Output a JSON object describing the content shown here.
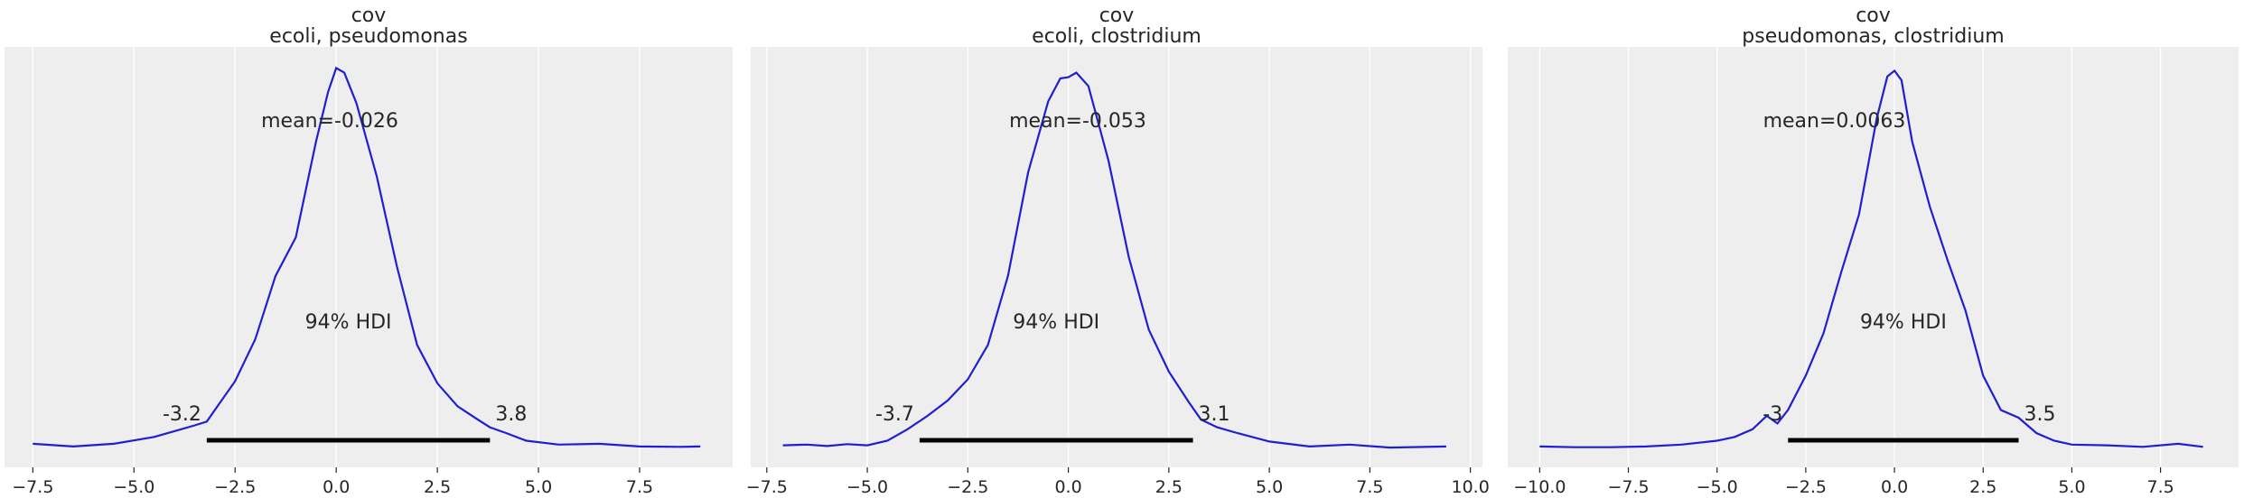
{
  "chart_data": [
    {
      "type": "line",
      "title": "cov",
      "subtitle": "ecoli, pseudomonas",
      "xlim": [
        -8.2,
        9.8
      ],
      "x_ticks": [
        -7.5,
        -5.0,
        -2.5,
        0.0,
        2.5,
        5.0,
        7.5
      ],
      "x_tick_labels": [
        "−7.5",
        "−5.0",
        "−2.5",
        "0.0",
        "2.5",
        "5.0",
        "7.5"
      ],
      "grid": true,
      "mean_label": "mean=-0.026",
      "hdi_label": "94% HDI",
      "hdi": [
        -3.2,
        3.8
      ],
      "hdi_low_label": "-3.2",
      "hdi_high_label": "3.8",
      "line_color": "#1f1fd1",
      "density": {
        "x": [
          -7.5,
          -6.5,
          -5.5,
          -4.5,
          -4.0,
          -3.5,
          -3.2,
          -3.0,
          -2.5,
          -2.0,
          -1.5,
          -1.0,
          -0.5,
          -0.2,
          0.0,
          0.2,
          0.5,
          1.0,
          1.5,
          2.0,
          2.5,
          3.0,
          3.5,
          3.8,
          4.2,
          4.7,
          5.5,
          6.5,
          7.5,
          8.5,
          9.0
        ],
        "y": [
          0.012,
          0.005,
          0.012,
          0.03,
          0.045,
          0.06,
          0.07,
          0.1,
          0.175,
          0.285,
          0.45,
          0.55,
          0.8,
          0.93,
          0.992,
          0.98,
          0.9,
          0.71,
          0.475,
          0.27,
          0.17,
          0.11,
          0.075,
          0.055,
          0.04,
          0.02,
          0.01,
          0.012,
          0.005,
          0.004,
          0.005
        ]
      }
    },
    {
      "type": "line",
      "title": "cov",
      "subtitle": "ecoli, clostridium",
      "xlim": [
        -7.9,
        10.3
      ],
      "x_ticks": [
        -7.5,
        -5.0,
        -2.5,
        0.0,
        2.5,
        5.0,
        7.5,
        10.0
      ],
      "x_tick_labels": [
        "−7.5",
        "−5.0",
        "−2.5",
        "0.0",
        "2.5",
        "5.0",
        "7.5",
        "10.0"
      ],
      "grid": true,
      "mean_label": "mean=-0.053",
      "hdi_label": "94% HDI",
      "hdi": [
        -3.7,
        3.1
      ],
      "hdi_low_label": "-3.7",
      "hdi_high_label": "3.1",
      "line_color": "#1f1fd1",
      "density": {
        "x": [
          -7.1,
          -6.5,
          -6.0,
          -5.5,
          -5.0,
          -4.5,
          -4.0,
          -3.5,
          -3.0,
          -2.5,
          -2.0,
          -1.5,
          -1.0,
          -0.5,
          -0.2,
          0.0,
          0.2,
          0.5,
          1.0,
          1.5,
          2.0,
          2.5,
          3.0,
          3.3,
          3.7,
          4.2,
          5.0,
          6.0,
          7.0,
          8.0,
          9.4
        ],
        "y": [
          0.008,
          0.01,
          0.006,
          0.011,
          0.008,
          0.02,
          0.05,
          0.085,
          0.125,
          0.18,
          0.27,
          0.45,
          0.72,
          0.905,
          0.965,
          0.968,
          0.98,
          0.945,
          0.75,
          0.5,
          0.31,
          0.2,
          0.12,
          0.075,
          0.055,
          0.04,
          0.018,
          0.005,
          0.01,
          0.002,
          0.005
        ]
      }
    },
    {
      "type": "line",
      "title": "cov",
      "subtitle": "pseudomonas, clostridium",
      "xlim": [
        -10.9,
        9.7
      ],
      "x_ticks": [
        -10.0,
        -7.5,
        -5.0,
        -2.5,
        0.0,
        2.5,
        5.0,
        7.5
      ],
      "x_tick_labels": [
        "−10.0",
        "−7.5",
        "−5.0",
        "−2.5",
        "0.0",
        "2.5",
        "5.0",
        "7.5"
      ],
      "grid": true,
      "mean_label": "mean=0.0063",
      "hdi_label": "94% HDI",
      "hdi": [
        -3.0,
        3.5
      ],
      "hdi_low_label": "-3",
      "hdi_high_label": "3.5",
      "line_color": "#1f1fd1",
      "density": {
        "x": [
          -10.0,
          -9.0,
          -8.0,
          -7.0,
          -6.0,
          -5.0,
          -4.5,
          -4.0,
          -3.6,
          -3.3,
          -3.0,
          -2.5,
          -2.0,
          -1.5,
          -1.0,
          -0.5,
          -0.2,
          0.0,
          0.2,
          0.5,
          1.0,
          1.5,
          2.0,
          2.5,
          3.0,
          3.5,
          4.0,
          4.5,
          5.0,
          6.0,
          7.0,
          8.0,
          8.7
        ],
        "y": [
          0.005,
          0.003,
          0.003,
          0.005,
          0.01,
          0.02,
          0.03,
          0.05,
          0.085,
          0.065,
          0.1,
          0.19,
          0.3,
          0.46,
          0.61,
          0.86,
          0.97,
          0.985,
          0.96,
          0.8,
          0.63,
          0.49,
          0.36,
          0.19,
          0.1,
          0.08,
          0.04,
          0.02,
          0.01,
          0.008,
          0.004,
          0.012,
          0.004
        ]
      }
    }
  ]
}
